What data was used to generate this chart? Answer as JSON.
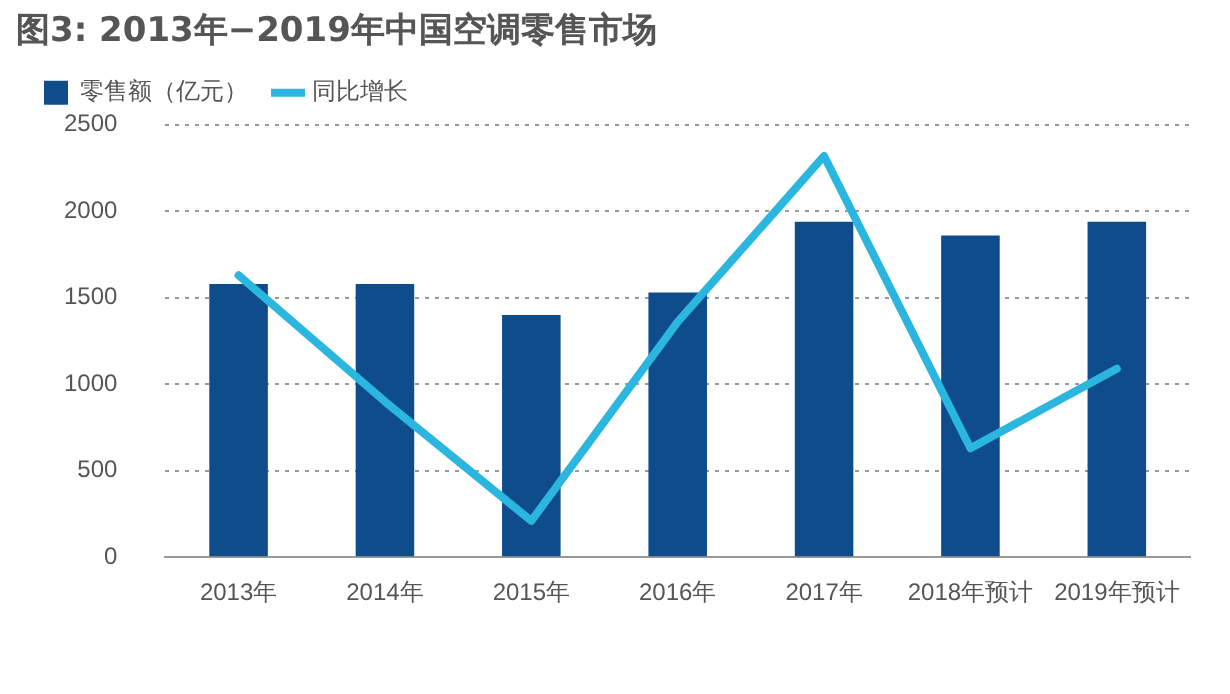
{
  "chart_data": {
    "type": "bar",
    "title": "图3: 2013年−2019年中国空调零售市场",
    "categories": [
      "2013年",
      "2014年",
      "2015年",
      "2016年",
      "2017年",
      "2018年预计",
      "2019年预计"
    ],
    "series": [
      {
        "name": "零售额（亿元）",
        "color": "#0f4c8c",
        "values": [
          1580,
          1580,
          1400,
          1530,
          1940,
          1860,
          1940
        ]
      },
      {
        "name": "同比增长",
        "type": "line",
        "color": "#2bb6e0",
        "values": [
          1630,
          900,
          210,
          1360,
          2320,
          630,
          1090
        ]
      }
    ],
    "ylim": [
      0,
      2500
    ],
    "yticks": [
      0,
      500,
      1000,
      1500,
      2000,
      2500
    ],
    "grid": "y",
    "legend": "top left",
    "marker": "none",
    "line_style": "solid"
  }
}
